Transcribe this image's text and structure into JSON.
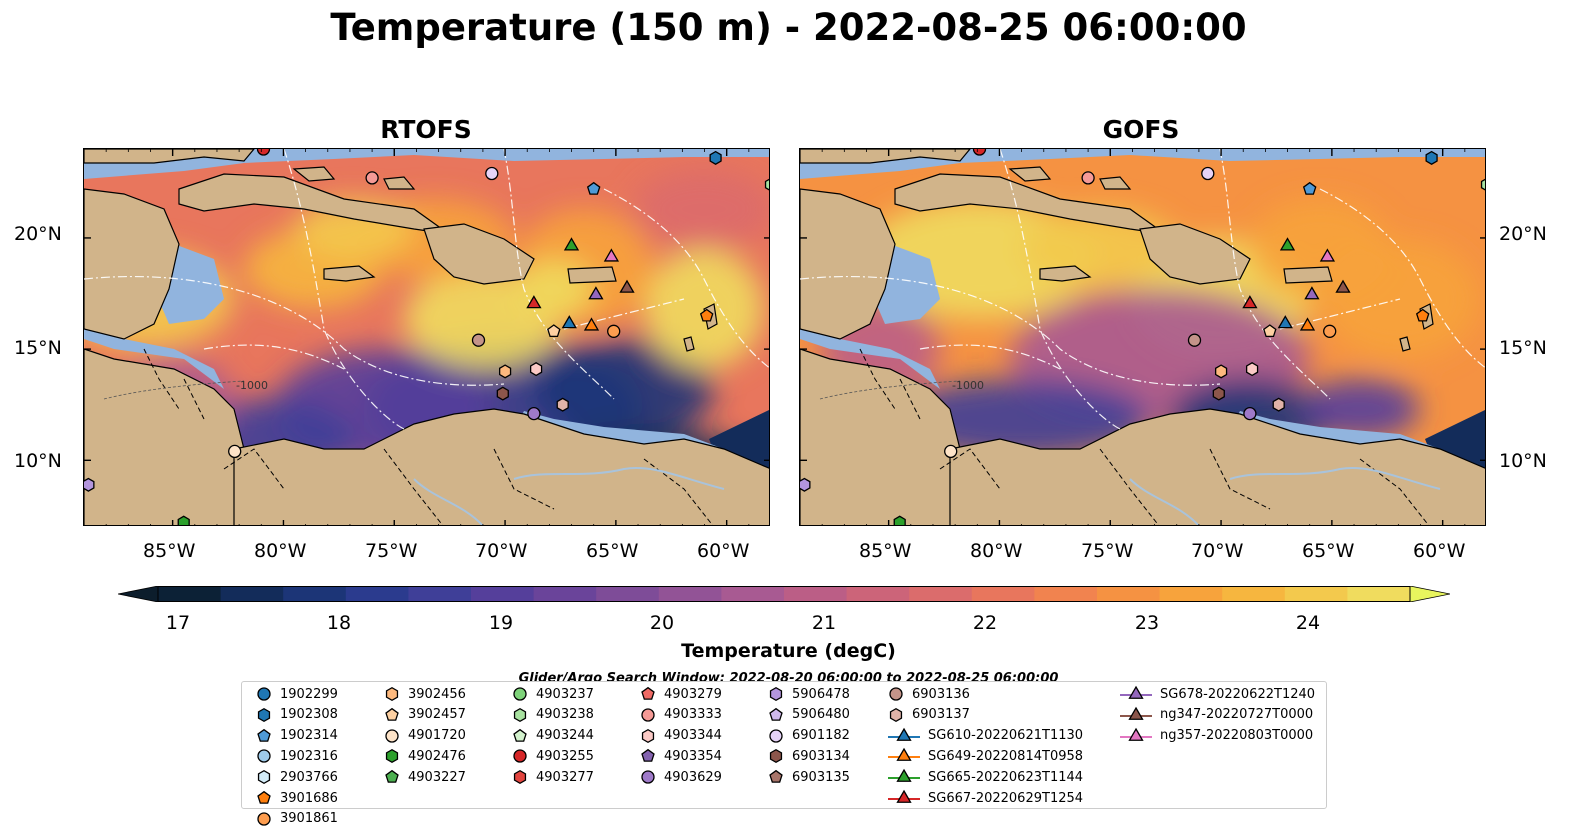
{
  "title": "Temperature (150 m) - 2022-08-25 06:00:00",
  "panels": [
    {
      "title": "RTOFS"
    },
    {
      "title": "GOFS"
    }
  ],
  "axes": {
    "lat_ticks": [
      "20°N",
      "15°N",
      "10°N"
    ],
    "lon_ticks": [
      "85°W",
      "80°W",
      "75°W",
      "70°W",
      "65°W",
      "60°W"
    ],
    "lat_range": [
      7,
      24
    ],
    "lon_range": [
      -89,
      -58
    ]
  },
  "contour_labels": [
    "-1000"
  ],
  "colorbar": {
    "label": "Temperature (degC)",
    "min": 16.5,
    "max": 24.5,
    "step": 0.5,
    "ticks": [
      "17",
      "18",
      "19",
      "20",
      "21",
      "22",
      "23",
      "24"
    ],
    "colors": [
      "#0c2136",
      "#132c5a",
      "#1c3577",
      "#2b3b8e",
      "#3f3f98",
      "#553f9b",
      "#6a449a",
      "#7e4c98",
      "#925396",
      "#a85a92",
      "#bb5e86",
      "#cc6479",
      "#db6c6c",
      "#e8765d",
      "#f1834f",
      "#f59242",
      "#f7a33c",
      "#f6b63f",
      "#f3c94d",
      "#f0dc5e"
    ],
    "under_color": "#0c1d2c",
    "over_color": "#e8f55e"
  },
  "land_color": "#d1b48a",
  "shelf_color": "#91b4de",
  "legend": {
    "title": "Glider/Argo Search Window: 2022-08-20 06:00:00 to 2022-08-25 06:00:00",
    "entries": [
      {
        "label": "1902299",
        "marker": "circle",
        "color": "#1f77b4"
      },
      {
        "label": "1902308",
        "marker": "hexagon",
        "color": "#1f77b4"
      },
      {
        "label": "1902314",
        "marker": "pentagon",
        "color": "#4f9ad6"
      },
      {
        "label": "1902316",
        "marker": "circle",
        "color": "#9ecae9"
      },
      {
        "label": "2903766",
        "marker": "hexagon",
        "color": "#d3ecf8"
      },
      {
        "label": "3901686",
        "marker": "pentagon",
        "color": "#ff7f0e"
      },
      {
        "label": "3901861",
        "marker": "circle",
        "color": "#fd9d4f"
      },
      {
        "label": "3902456",
        "marker": "hexagon",
        "color": "#fdb97e"
      },
      {
        "label": "3902457",
        "marker": "pentagon",
        "color": "#fdd0a2"
      },
      {
        "label": "4901720",
        "marker": "circle",
        "color": "#fde3c8"
      },
      {
        "label": "4902476",
        "marker": "hexagon",
        "color": "#2ca02c"
      },
      {
        "label": "4903227",
        "marker": "pentagon",
        "color": "#4caf50"
      },
      {
        "label": "4903237",
        "marker": "circle",
        "color": "#7ed37a"
      },
      {
        "label": "4903238",
        "marker": "hexagon",
        "color": "#a8e2a0"
      },
      {
        "label": "4903244",
        "marker": "pentagon",
        "color": "#d3f2cd"
      },
      {
        "label": "4903255",
        "marker": "circle",
        "color": "#d62728"
      },
      {
        "label": "4903277",
        "marker": "hexagon",
        "color": "#e2453f"
      },
      {
        "label": "4903279",
        "marker": "pentagon",
        "color": "#ef6a65"
      },
      {
        "label": "4903333",
        "marker": "circle",
        "color": "#f59a96"
      },
      {
        "label": "4903344",
        "marker": "hexagon",
        "color": "#fbcac6"
      },
      {
        "label": "4903354",
        "marker": "pentagon",
        "color": "#8463b0"
      },
      {
        "label": "4903629",
        "marker": "circle",
        "color": "#9f7ac9"
      },
      {
        "label": "5906478",
        "marker": "hexagon",
        "color": "#b395dd"
      },
      {
        "label": "5906480",
        "marker": "pentagon",
        "color": "#cfb8ec"
      },
      {
        "label": "6901182",
        "marker": "circle",
        "color": "#e6d3f7"
      },
      {
        "label": "6903134",
        "marker": "hexagon",
        "color": "#8c564b"
      },
      {
        "label": "6903135",
        "marker": "pentagon",
        "color": "#a8756a"
      },
      {
        "label": "6903136",
        "marker": "circle",
        "color": "#c49489"
      },
      {
        "label": "6903137",
        "marker": "hexagon",
        "color": "#e0b3a8"
      },
      {
        "label": "SG610-20220621T1130",
        "marker": "triangle",
        "color": "#1f77b4"
      },
      {
        "label": "SG649-20220814T0958",
        "marker": "triangle",
        "color": "#ff7f0e"
      },
      {
        "label": "SG665-20220623T1144",
        "marker": "triangle",
        "color": "#2ca02c"
      },
      {
        "label": "SG667-20220629T1254",
        "marker": "triangle",
        "color": "#d62728"
      },
      {
        "label": "SG678-20220622T1240",
        "marker": "triangle",
        "color": "#9467bd"
      },
      {
        "label": "ng347-20220727T0000",
        "marker": "triangle",
        "color": "#8c564b"
      },
      {
        "label": "ng357-20220803T0000",
        "marker": "triangle",
        "color": "#e377c2"
      }
    ]
  },
  "markers": [
    {
      "label": "1902308",
      "lon": -60.5,
      "lat": 23.6
    },
    {
      "label": "1902314",
      "lon": -66.0,
      "lat": 22.2
    },
    {
      "label": "6901182",
      "lon": -70.6,
      "lat": 22.9
    },
    {
      "label": "4903333",
      "lon": -76.0,
      "lat": 22.7
    },
    {
      "label": "4903238",
      "lon": -58.0,
      "lat": 22.4
    },
    {
      "label": "4903255",
      "lon": -80.9,
      "lat": 24.0
    },
    {
      "label": "SG665-20220623T1144",
      "lon": -67.0,
      "lat": 19.7
    },
    {
      "label": "ng357-20220803T0000",
      "lon": -65.2,
      "lat": 19.2
    },
    {
      "label": "SG678-20220622T1240",
      "lon": -65.9,
      "lat": 17.5
    },
    {
      "label": "ng347-20220727T0000",
      "lon": -64.5,
      "lat": 17.8
    },
    {
      "label": "SG667-20220629T1254",
      "lon": -68.7,
      "lat": 17.1
    },
    {
      "label": "SG610-20220621T1130",
      "lon": -67.1,
      "lat": 16.2
    },
    {
      "label": "SG649-20220814T0958",
      "lon": -66.1,
      "lat": 16.1
    },
    {
      "label": "3901861",
      "lon": -65.1,
      "lat": 15.8
    },
    {
      "label": "3901686",
      "lon": -60.9,
      "lat": 16.5
    },
    {
      "label": "3902457",
      "lon": -67.8,
      "lat": 15.8
    },
    {
      "label": "6903136",
      "lon": -71.2,
      "lat": 15.4
    },
    {
      "label": "3902456",
      "lon": -70.0,
      "lat": 14.0
    },
    {
      "label": "4903344",
      "lon": -68.6,
      "lat": 14.1
    },
    {
      "label": "6903134",
      "lon": -70.1,
      "lat": 13.0
    },
    {
      "label": "6903137",
      "lon": -67.4,
      "lat": 12.5
    },
    {
      "label": "4903629",
      "lon": -68.7,
      "lat": 12.1
    },
    {
      "label": "4901720",
      "lon": -82.2,
      "lat": 10.4
    },
    {
      "label": "5906478",
      "lon": -88.8,
      "lat": 8.9
    },
    {
      "label": "4902476",
      "lon": -84.5,
      "lat": 7.2
    }
  ]
}
